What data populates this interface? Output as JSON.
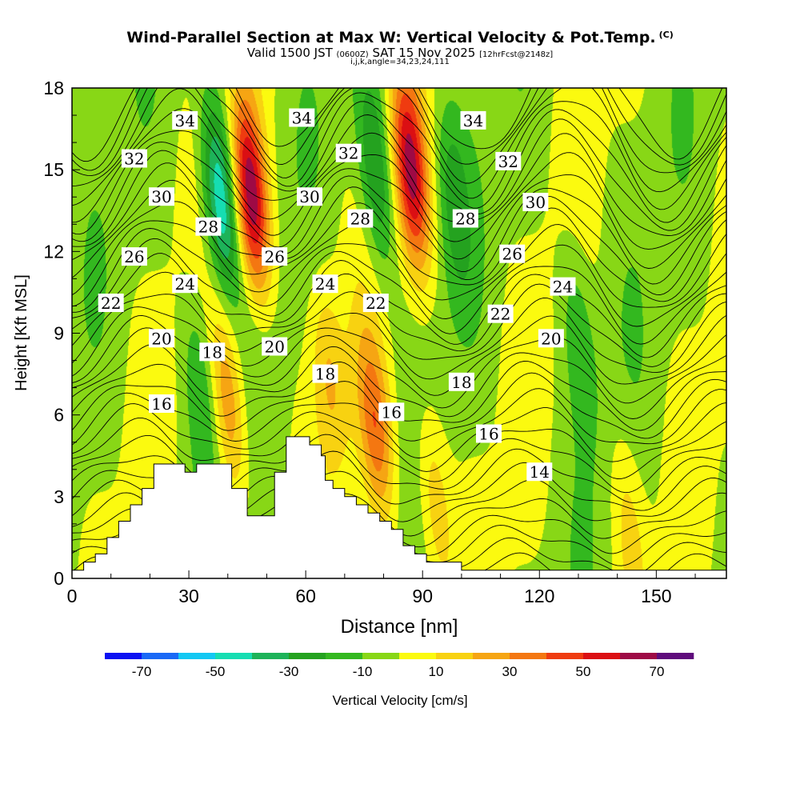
{
  "header": {
    "title": "Wind-Parallel Section at Max W: Vertical Velocity & Pot.Temp.",
    "title_mark": "(C)",
    "subtitle_a": "Valid 1500 JST",
    "subtitle_b": "(0600Z)",
    "subtitle_c": "SAT 15 Nov 2025",
    "subtitle_d": "[12hrFcst@2148z]",
    "subtitle2": "i,j,k,angle=34,23,24,111"
  },
  "chart_data": {
    "type": "heatmap",
    "title": "Wind-Parallel Section at Max W: Vertical Velocity & Pot.Temp.",
    "xlabel": "Distance [nm]",
    "ylabel": "Height [Kft MSL]",
    "xlim": [
      0,
      168
    ],
    "ylim": [
      0,
      18
    ],
    "xticks": [
      0,
      30,
      60,
      90,
      120,
      150
    ],
    "yticks": [
      0,
      3,
      6,
      9,
      12,
      15,
      18
    ],
    "colorbar": {
      "label": "Vertical Velocity [cm/s]",
      "tick_values": [
        -70,
        -50,
        -30,
        -10,
        10,
        30,
        50,
        70
      ],
      "levels": [
        -80,
        -70,
        -60,
        -50,
        -40,
        -30,
        -20,
        -10,
        0,
        10,
        20,
        30,
        40,
        50,
        60,
        70,
        80
      ],
      "colors": [
        "#0b11f2",
        "#1a69f6",
        "#12c8f3",
        "#16ddb2",
        "#1db359",
        "#24a21f",
        "#33b81f",
        "#88d716",
        "#fbfa0f",
        "#f8d211",
        "#f6a513",
        "#f47711",
        "#ef3b10",
        "#db0f13",
        "#9e0a45",
        "#5f0b7c"
      ]
    },
    "updrafts": [
      {
        "x": 46,
        "z": 14,
        "w": 72
      },
      {
        "x": 87,
        "z": 15,
        "w": 62
      },
      {
        "x": 78,
        "z": 5.5,
        "w": 38
      },
      {
        "x": 40,
        "z": 6.5,
        "w": 32
      },
      {
        "x": 66,
        "z": 7.5,
        "w": 20
      },
      {
        "x": 93,
        "z": 3,
        "w": 22
      },
      {
        "x": 143,
        "z": 2,
        "w": 16
      }
    ],
    "downdrafts": [
      {
        "x": 38,
        "z": 14,
        "w": -52
      },
      {
        "x": 78,
        "z": 15,
        "w": -32
      },
      {
        "x": 98,
        "z": 14,
        "w": -20
      },
      {
        "x": 33,
        "z": 7,
        "w": -20
      },
      {
        "x": 130,
        "z": 9,
        "w": -18
      }
    ],
    "theta_contours": {
      "units": "potential temperature",
      "labels": [
        {
          "value": "34",
          "x": 29,
          "z": 16.8
        },
        {
          "value": "34",
          "x": 59,
          "z": 16.9
        },
        {
          "value": "34",
          "x": 103,
          "z": 16.8
        },
        {
          "value": "32",
          "x": 16,
          "z": 15.4
        },
        {
          "value": "32",
          "x": 71,
          "z": 15.6
        },
        {
          "value": "32",
          "x": 112,
          "z": 15.3
        },
        {
          "value": "30",
          "x": 23,
          "z": 14
        },
        {
          "value": "30",
          "x": 61,
          "z": 14
        },
        {
          "value": "30",
          "x": 119,
          "z": 13.8
        },
        {
          "value": "28",
          "x": 35,
          "z": 12.9
        },
        {
          "value": "28",
          "x": 74,
          "z": 13.2
        },
        {
          "value": "28",
          "x": 101,
          "z": 13.2
        },
        {
          "value": "26",
          "x": 16,
          "z": 11.8
        },
        {
          "value": "26",
          "x": 52,
          "z": 11.8
        },
        {
          "value": "26",
          "x": 113,
          "z": 11.9
        },
        {
          "value": "24",
          "x": 29,
          "z": 10.8
        },
        {
          "value": "24",
          "x": 65,
          "z": 10.8
        },
        {
          "value": "24",
          "x": 126,
          "z": 10.7
        },
        {
          "value": "22",
          "x": 10,
          "z": 10.1
        },
        {
          "value": "22",
          "x": 78,
          "z": 10.1
        },
        {
          "value": "22",
          "x": 110,
          "z": 9.7
        },
        {
          "value": "20",
          "x": 23,
          "z": 8.8
        },
        {
          "value": "20",
          "x": 52,
          "z": 8.5
        },
        {
          "value": "20",
          "x": 123,
          "z": 8.8
        },
        {
          "value": "18",
          "x": 36,
          "z": 8.3
        },
        {
          "value": "18",
          "x": 65,
          "z": 7.5
        },
        {
          "value": "18",
          "x": 100,
          "z": 7.2
        },
        {
          "value": "16",
          "x": 23,
          "z": 6.4
        },
        {
          "value": "16",
          "x": 82,
          "z": 6.1
        },
        {
          "value": "16",
          "x": 107,
          "z": 5.3
        },
        {
          "value": "14",
          "x": 120,
          "z": 3.9
        }
      ]
    },
    "terrain": [
      [
        0,
        0.3
      ],
      [
        3,
        0.3
      ],
      [
        3,
        0.6
      ],
      [
        6,
        0.6
      ],
      [
        6,
        0.9
      ],
      [
        9,
        0.9
      ],
      [
        9,
        1.5
      ],
      [
        12,
        1.5
      ],
      [
        12,
        2.1
      ],
      [
        15,
        2.1
      ],
      [
        15,
        2.7
      ],
      [
        18,
        2.7
      ],
      [
        18,
        3.3
      ],
      [
        21,
        3.3
      ],
      [
        21,
        4.2
      ],
      [
        29,
        4.2
      ],
      [
        29,
        3.9
      ],
      [
        32,
        3.9
      ],
      [
        32,
        4.2
      ],
      [
        41,
        4.2
      ],
      [
        41,
        3.3
      ],
      [
        45,
        3.3
      ],
      [
        45,
        2.3
      ],
      [
        52,
        2.3
      ],
      [
        52,
        3.9
      ],
      [
        55,
        3.9
      ],
      [
        55,
        5.2
      ],
      [
        61,
        5.2
      ],
      [
        61,
        4.9
      ],
      [
        64,
        4.9
      ],
      [
        64,
        4.5
      ],
      [
        65,
        4.5
      ],
      [
        65,
        3.6
      ],
      [
        67,
        3.6
      ],
      [
        67,
        3.3
      ],
      [
        70,
        3.3
      ],
      [
        70,
        3.0
      ],
      [
        73,
        3.0
      ],
      [
        73,
        2.7
      ],
      [
        76,
        2.7
      ],
      [
        76,
        2.4
      ],
      [
        79,
        2.4
      ],
      [
        79,
        2.1
      ],
      [
        82,
        2.1
      ],
      [
        82,
        1.8
      ],
      [
        85,
        1.8
      ],
      [
        85,
        1.2
      ],
      [
        88,
        1.2
      ],
      [
        88,
        0.9
      ],
      [
        91,
        0.9
      ],
      [
        91,
        0.6
      ],
      [
        100,
        0.6
      ],
      [
        100,
        0.3
      ],
      [
        168,
        0.3
      ]
    ]
  }
}
